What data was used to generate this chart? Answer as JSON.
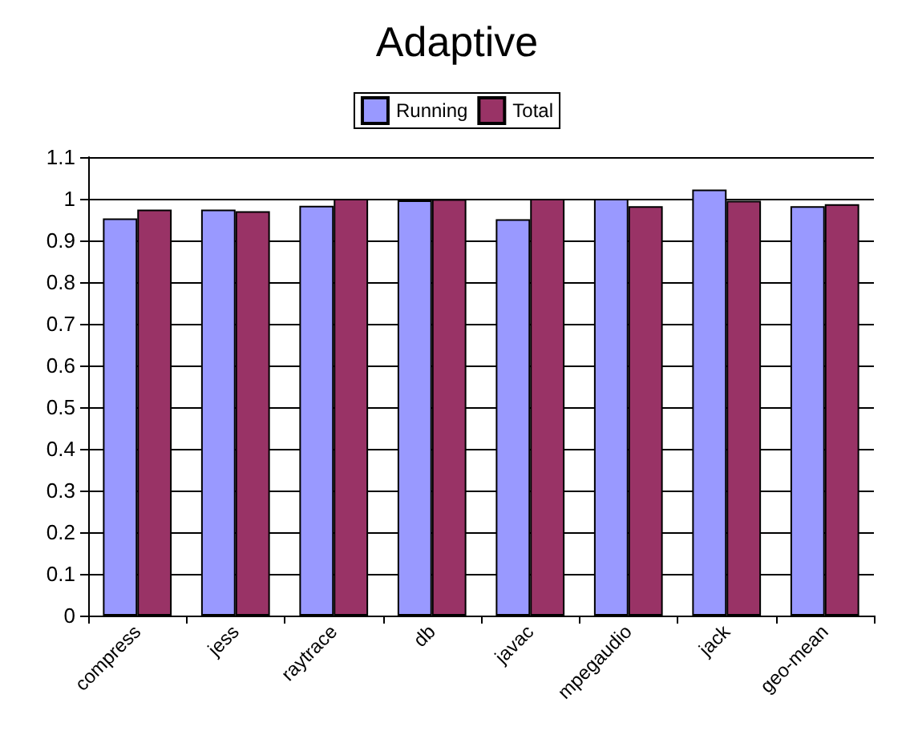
{
  "chart_data": {
    "type": "bar",
    "title": "Adaptive",
    "categories": [
      "compress",
      "jess",
      "raytrace",
      "db",
      "javac",
      "mpegaudio",
      "jack",
      "geo-mean"
    ],
    "series": [
      {
        "name": "Running",
        "color": "#9999ff",
        "values": [
          0.953,
          0.974,
          0.983,
          0.996,
          0.951,
          1.0,
          1.022,
          0.982
        ]
      },
      {
        "name": "Total",
        "color": "#993366",
        "values": [
          0.974,
          0.97,
          1.0,
          0.999,
          1.0,
          0.982,
          0.995,
          0.987
        ]
      }
    ],
    "ylim": [
      0,
      1.1
    ],
    "yticks": [
      0,
      0.1,
      0.2,
      0.3,
      0.4,
      0.5,
      0.6,
      0.7,
      0.8,
      0.9,
      1,
      1.1
    ],
    "grid": "y",
    "legend": "top"
  }
}
